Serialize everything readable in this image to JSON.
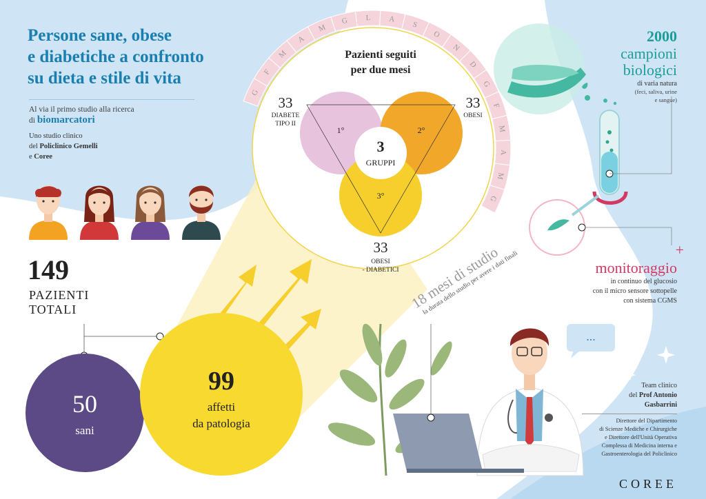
{
  "title": {
    "line1": "Persone sane, obese",
    "line2": "e diabetiche a confronto",
    "line3": "su dieta e stile di vita"
  },
  "subtitle": {
    "line1": "Al via il primo studio alla ricerca",
    "prefix": "di",
    "highlight": "biomarcatori"
  },
  "study": {
    "line1": "Uno studio clinico",
    "prefix2": "del",
    "policlinico": "Policlinico Gemelli",
    "prefix3": "e",
    "coree": "Coree"
  },
  "patients": {
    "total": "149",
    "total_label_1": "PAZIENTI",
    "total_label_2": "TOTALI",
    "healthy_count": "50",
    "healthy_label": "sani",
    "sick_count": "99",
    "sick_label_1": "affetti",
    "sick_label_2": "da patologia"
  },
  "venn": {
    "title_line1": "Pazienti seguiti",
    "title_line2": "per due mesi",
    "center_number": "3",
    "center_label": "GRUPPI",
    "group1": {
      "count": "33",
      "label1": "DIABETE",
      "label2": "TIPO II",
      "order": "1°",
      "color": "#e8c3de"
    },
    "group2": {
      "count": "33",
      "label1": "OBESI",
      "order": "2°",
      "color": "#f0a72a"
    },
    "group3": {
      "count": "33",
      "label1": "OBESI",
      "label2": "- DIABETICI",
      "order": "3°",
      "color": "#f6cf2c"
    }
  },
  "months_ring": [
    "G",
    "F",
    "M",
    "A",
    "M",
    "G",
    "L",
    "A",
    "S",
    "O",
    "N",
    "D",
    "G",
    "F",
    "M",
    "A",
    "M",
    "G"
  ],
  "duration": {
    "title": "18 mesi di studio",
    "subtitle": "la durata dello studio per avere i dati finali"
  },
  "samples": {
    "count": "2000",
    "label1": "campioni",
    "label2": "biologici",
    "desc": "di varia natura",
    "detail1": "(feci, saliva, urine",
    "detail2": "e sangue)"
  },
  "monitoring": {
    "plus": "+",
    "title": "monitoraggio",
    "line1": "in continuo del glucosio",
    "line2": "con il micro sensore sottopelle",
    "line3": "con sistema CGMS"
  },
  "team": {
    "label": "Team clinico",
    "prefix": "del",
    "name_line1": "Prof Antonio",
    "name_line2": "Gasbarrini",
    "desc": [
      "Direttore del Dipartimento",
      "di Scienze Mediche e Chirurgiche",
      "e Direttore dell'Unità Operativa",
      "Complessa di Medicina interna e",
      "Gastroenterologia del Policlinico"
    ]
  },
  "speech_bubble": "...",
  "logo": "COREE",
  "colors": {
    "title_blue": "#1a7fae",
    "light_blue": "#cfe5f6",
    "purple": "#5c4a86",
    "yellow": "#f8d930",
    "teal": "#1a9e97",
    "pink": "#d13b63",
    "ring_pink": "#f6d4db"
  }
}
